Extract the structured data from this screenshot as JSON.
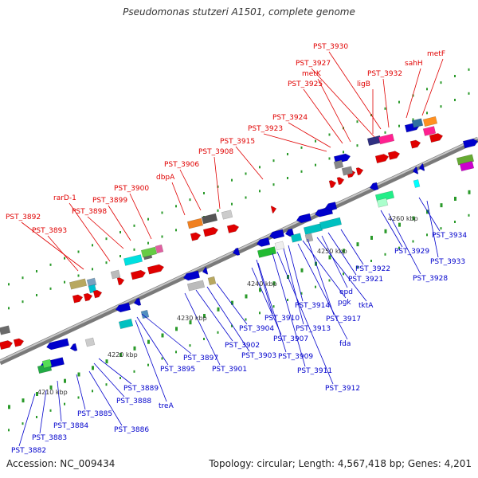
{
  "title": "Pseudomonas stutzeri A1501, complete genome",
  "accession": "Accession: NC_009434",
  "summary": "Topology: circular; Length: 4,567,418 bp; Genes: 4,201",
  "colors": {
    "backbone": "#9a9a9a",
    "forward_label": "#e00000",
    "reverse_label": "#0000cc",
    "scale_tick": "#2a9a2a",
    "scale_label": "#333333"
  },
  "scale_labels": [
    "4210 kbp",
    "4220 kbp",
    "4230 kbp",
    "4240 kbp",
    "4250 kbp",
    "4260 kbp"
  ],
  "forward_labels": [
    "PST_3892",
    "PST_3893",
    "rarD-1",
    "PST_3898",
    "PST_3899",
    "PST_3900",
    "dbpA",
    "PST_3906",
    "PST_3908",
    "PST_3915",
    "PST_3923",
    "PST_3924",
    "PST_3925",
    "metK",
    "PST_3927",
    "PST_3930",
    "ligB",
    "PST_3932",
    "sahH",
    "metF"
  ],
  "reverse_labels": [
    "PST_3882",
    "PST_3883",
    "PST_3884",
    "PST_3885",
    "PST_3886",
    "PST_3888",
    "PST_3889",
    "treA",
    "PST_3895",
    "PST_3897",
    "PST_3901",
    "PST_3902",
    "PST_3903",
    "PST_3904",
    "PST_3907",
    "PST_3909",
    "PST_3910",
    "PST_3911",
    "PST_3912",
    "PST_3913",
    "PST_3914",
    "fda",
    "pgk",
    "PST_3917",
    "tktA",
    "epd",
    "PST_3921",
    "PST_3922",
    "PST_3928",
    "PST_3929",
    "PST_3933",
    "PST_3934"
  ]
}
